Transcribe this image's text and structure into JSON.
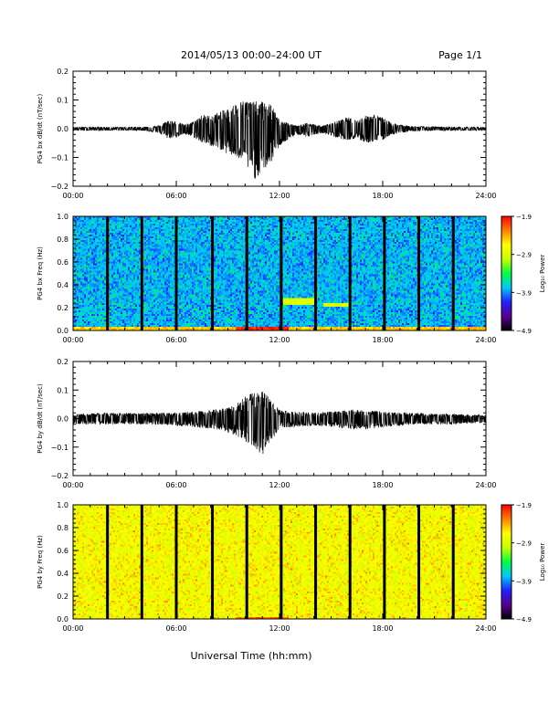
{
  "header": {
    "title": "2014/05/13  00:00–24:00 UT",
    "page": "Page 1/1"
  },
  "footer": {
    "xlabel": "Universal Time (hh:mm)"
  },
  "colors": {
    "trace": "#000000",
    "colorbar_stops": [
      "#000000",
      "#5a0090",
      "#2020ff",
      "#00c8ff",
      "#00ff40",
      "#c8ff00",
      "#ffff00",
      "#ff8000",
      "#ff0000"
    ]
  },
  "chart_data": [
    {
      "type": "line",
      "ylabel": "PG4 bx dB/dt (nT/sec)",
      "xlim": [
        0,
        24
      ],
      "ylim": [
        -0.2,
        0.2
      ],
      "x_ticks": [
        "00:00",
        "06:00",
        "12:00",
        "18:00",
        "24:00"
      ],
      "y_ticks": [
        "−0.2",
        "−0.1",
        "0.0",
        "0.1",
        "0.2"
      ],
      "y_tick_values": [
        -0.2,
        -0.1,
        0.0,
        0.1,
        0.2
      ],
      "envelope_x": [
        0,
        2,
        4,
        5,
        5.5,
        6,
        6.5,
        7,
        7.5,
        8,
        8.5,
        9,
        9.5,
        10,
        10.5,
        11,
        11.5,
        12,
        12.5,
        13,
        13.5,
        14,
        14.5,
        15,
        15.5,
        16,
        16.5,
        17,
        17.5,
        18,
        18.5,
        19,
        19.5,
        20,
        22,
        24
      ],
      "envelope_upper": [
        0.006,
        0.006,
        0.006,
        0.01,
        0.03,
        0.025,
        0.015,
        0.025,
        0.05,
        0.045,
        0.06,
        0.07,
        0.09,
        0.1,
        0.095,
        0.095,
        0.085,
        0.03,
        0.02,
        0.01,
        0.02,
        0.015,
        0.01,
        0.02,
        0.03,
        0.04,
        0.03,
        0.045,
        0.05,
        0.04,
        0.02,
        0.015,
        0.01,
        0.008,
        0.006,
        0.006
      ],
      "envelope_lower": [
        -0.006,
        -0.006,
        -0.006,
        -0.015,
        -0.035,
        -0.03,
        -0.02,
        -0.03,
        -0.05,
        -0.06,
        -0.07,
        -0.09,
        -0.1,
        -0.12,
        -0.18,
        -0.15,
        -0.12,
        -0.06,
        -0.04,
        -0.02,
        -0.03,
        -0.02,
        -0.015,
        -0.025,
        -0.035,
        -0.04,
        -0.035,
        -0.05,
        -0.045,
        -0.04,
        -0.02,
        -0.015,
        -0.01,
        -0.008,
        -0.006,
        -0.006
      ]
    },
    {
      "type": "heatmap",
      "ylabel": "PG4 bx Freq (Hz)",
      "xlim": [
        0,
        24
      ],
      "ylim": [
        0,
        1.0
      ],
      "x_ticks": [
        "00:00",
        "06:00",
        "12:00",
        "18:00",
        "24:00"
      ],
      "y_ticks": [
        "0.0",
        "0.2",
        "0.4",
        "0.6",
        "0.8",
        "1.0"
      ],
      "y_tick_values": [
        0,
        0.2,
        0.4,
        0.6,
        0.8,
        1.0
      ],
      "colorbar_label": "Log₁₀ Power",
      "colorbar_ticks": [
        "−1.9",
        "−2.9",
        "−3.9",
        "−4.9"
      ],
      "colorbar_range": [
        -4.9,
        -1.9
      ],
      "background_level": -3.8,
      "gap_times": [
        2.0,
        4.0,
        6.0,
        8.1,
        10.1,
        12.1,
        14.1,
        16.1,
        18.1,
        20.1,
        22.1
      ],
      "features": [
        {
          "x": [
            0,
            24
          ],
          "y": [
            0,
            0.03
          ],
          "level": -2.5
        },
        {
          "x": [
            9.5,
            12.5
          ],
          "y": [
            0,
            0.03
          ],
          "level": -2.0
        },
        {
          "x": [
            12.2,
            14.0
          ],
          "y": [
            0.22,
            0.28
          ],
          "level": -2.9
        },
        {
          "x": [
            14.5,
            16.0
          ],
          "y": [
            0.2,
            0.24
          ],
          "level": -2.9
        }
      ]
    },
    {
      "type": "line",
      "ylabel": "PG4 by dB/dt (nT/sec)",
      "xlim": [
        0,
        24
      ],
      "ylim": [
        -0.2,
        0.2
      ],
      "x_ticks": [
        "00:00",
        "06:00",
        "12:00",
        "18:00",
        "24:00"
      ],
      "y_ticks": [
        "−0.2",
        "−0.1",
        "0.0",
        "0.1",
        "0.2"
      ],
      "y_tick_values": [
        -0.2,
        -0.1,
        0.0,
        0.1,
        0.2
      ],
      "envelope_x": [
        0,
        2,
        4,
        6,
        7,
        8,
        8.5,
        9,
        9.5,
        10,
        10.5,
        11,
        11.5,
        12,
        12.5,
        13,
        14,
        15,
        16,
        17,
        18,
        19,
        20,
        22,
        24
      ],
      "envelope_upper": [
        0.015,
        0.02,
        0.02,
        0.02,
        0.025,
        0.03,
        0.035,
        0.04,
        0.05,
        0.08,
        0.09,
        0.095,
        0.07,
        0.03,
        0.025,
        0.025,
        0.02,
        0.025,
        0.03,
        0.03,
        0.025,
        0.02,
        0.02,
        0.015,
        0.012
      ],
      "envelope_lower": [
        -0.02,
        -0.02,
        -0.02,
        -0.025,
        -0.03,
        -0.035,
        -0.04,
        -0.05,
        -0.06,
        -0.08,
        -0.1,
        -0.13,
        -0.08,
        -0.035,
        -0.03,
        -0.03,
        -0.025,
        -0.03,
        -0.035,
        -0.04,
        -0.03,
        -0.025,
        -0.02,
        -0.02,
        -0.015
      ]
    },
    {
      "type": "heatmap",
      "ylabel": "PG4 by Freq (Hz)",
      "xlim": [
        0,
        24
      ],
      "ylim": [
        0,
        1.0
      ],
      "x_ticks": [
        "00:00",
        "06:00",
        "12:00",
        "18:00",
        "24:00"
      ],
      "y_ticks": [
        "0.0",
        "0.2",
        "0.4",
        "0.6",
        "0.8",
        "1.0"
      ],
      "y_tick_values": [
        0,
        0.2,
        0.4,
        0.6,
        0.8,
        1.0
      ],
      "colorbar_label": "Log₁₀ Power",
      "colorbar_ticks": [
        "−1.9",
        "−2.9",
        "−3.9",
        "−4.9"
      ],
      "colorbar_range": [
        -4.9,
        -1.9
      ],
      "background_level": -2.7,
      "gap_times": [
        2.0,
        4.0,
        6.0,
        8.1,
        10.1,
        12.1,
        14.1,
        16.1,
        18.1,
        20.1,
        22.1
      ],
      "features": [
        {
          "x": [
            9.5,
            12.5
          ],
          "y": [
            0,
            0.02
          ],
          "level": -2.2
        }
      ]
    }
  ]
}
